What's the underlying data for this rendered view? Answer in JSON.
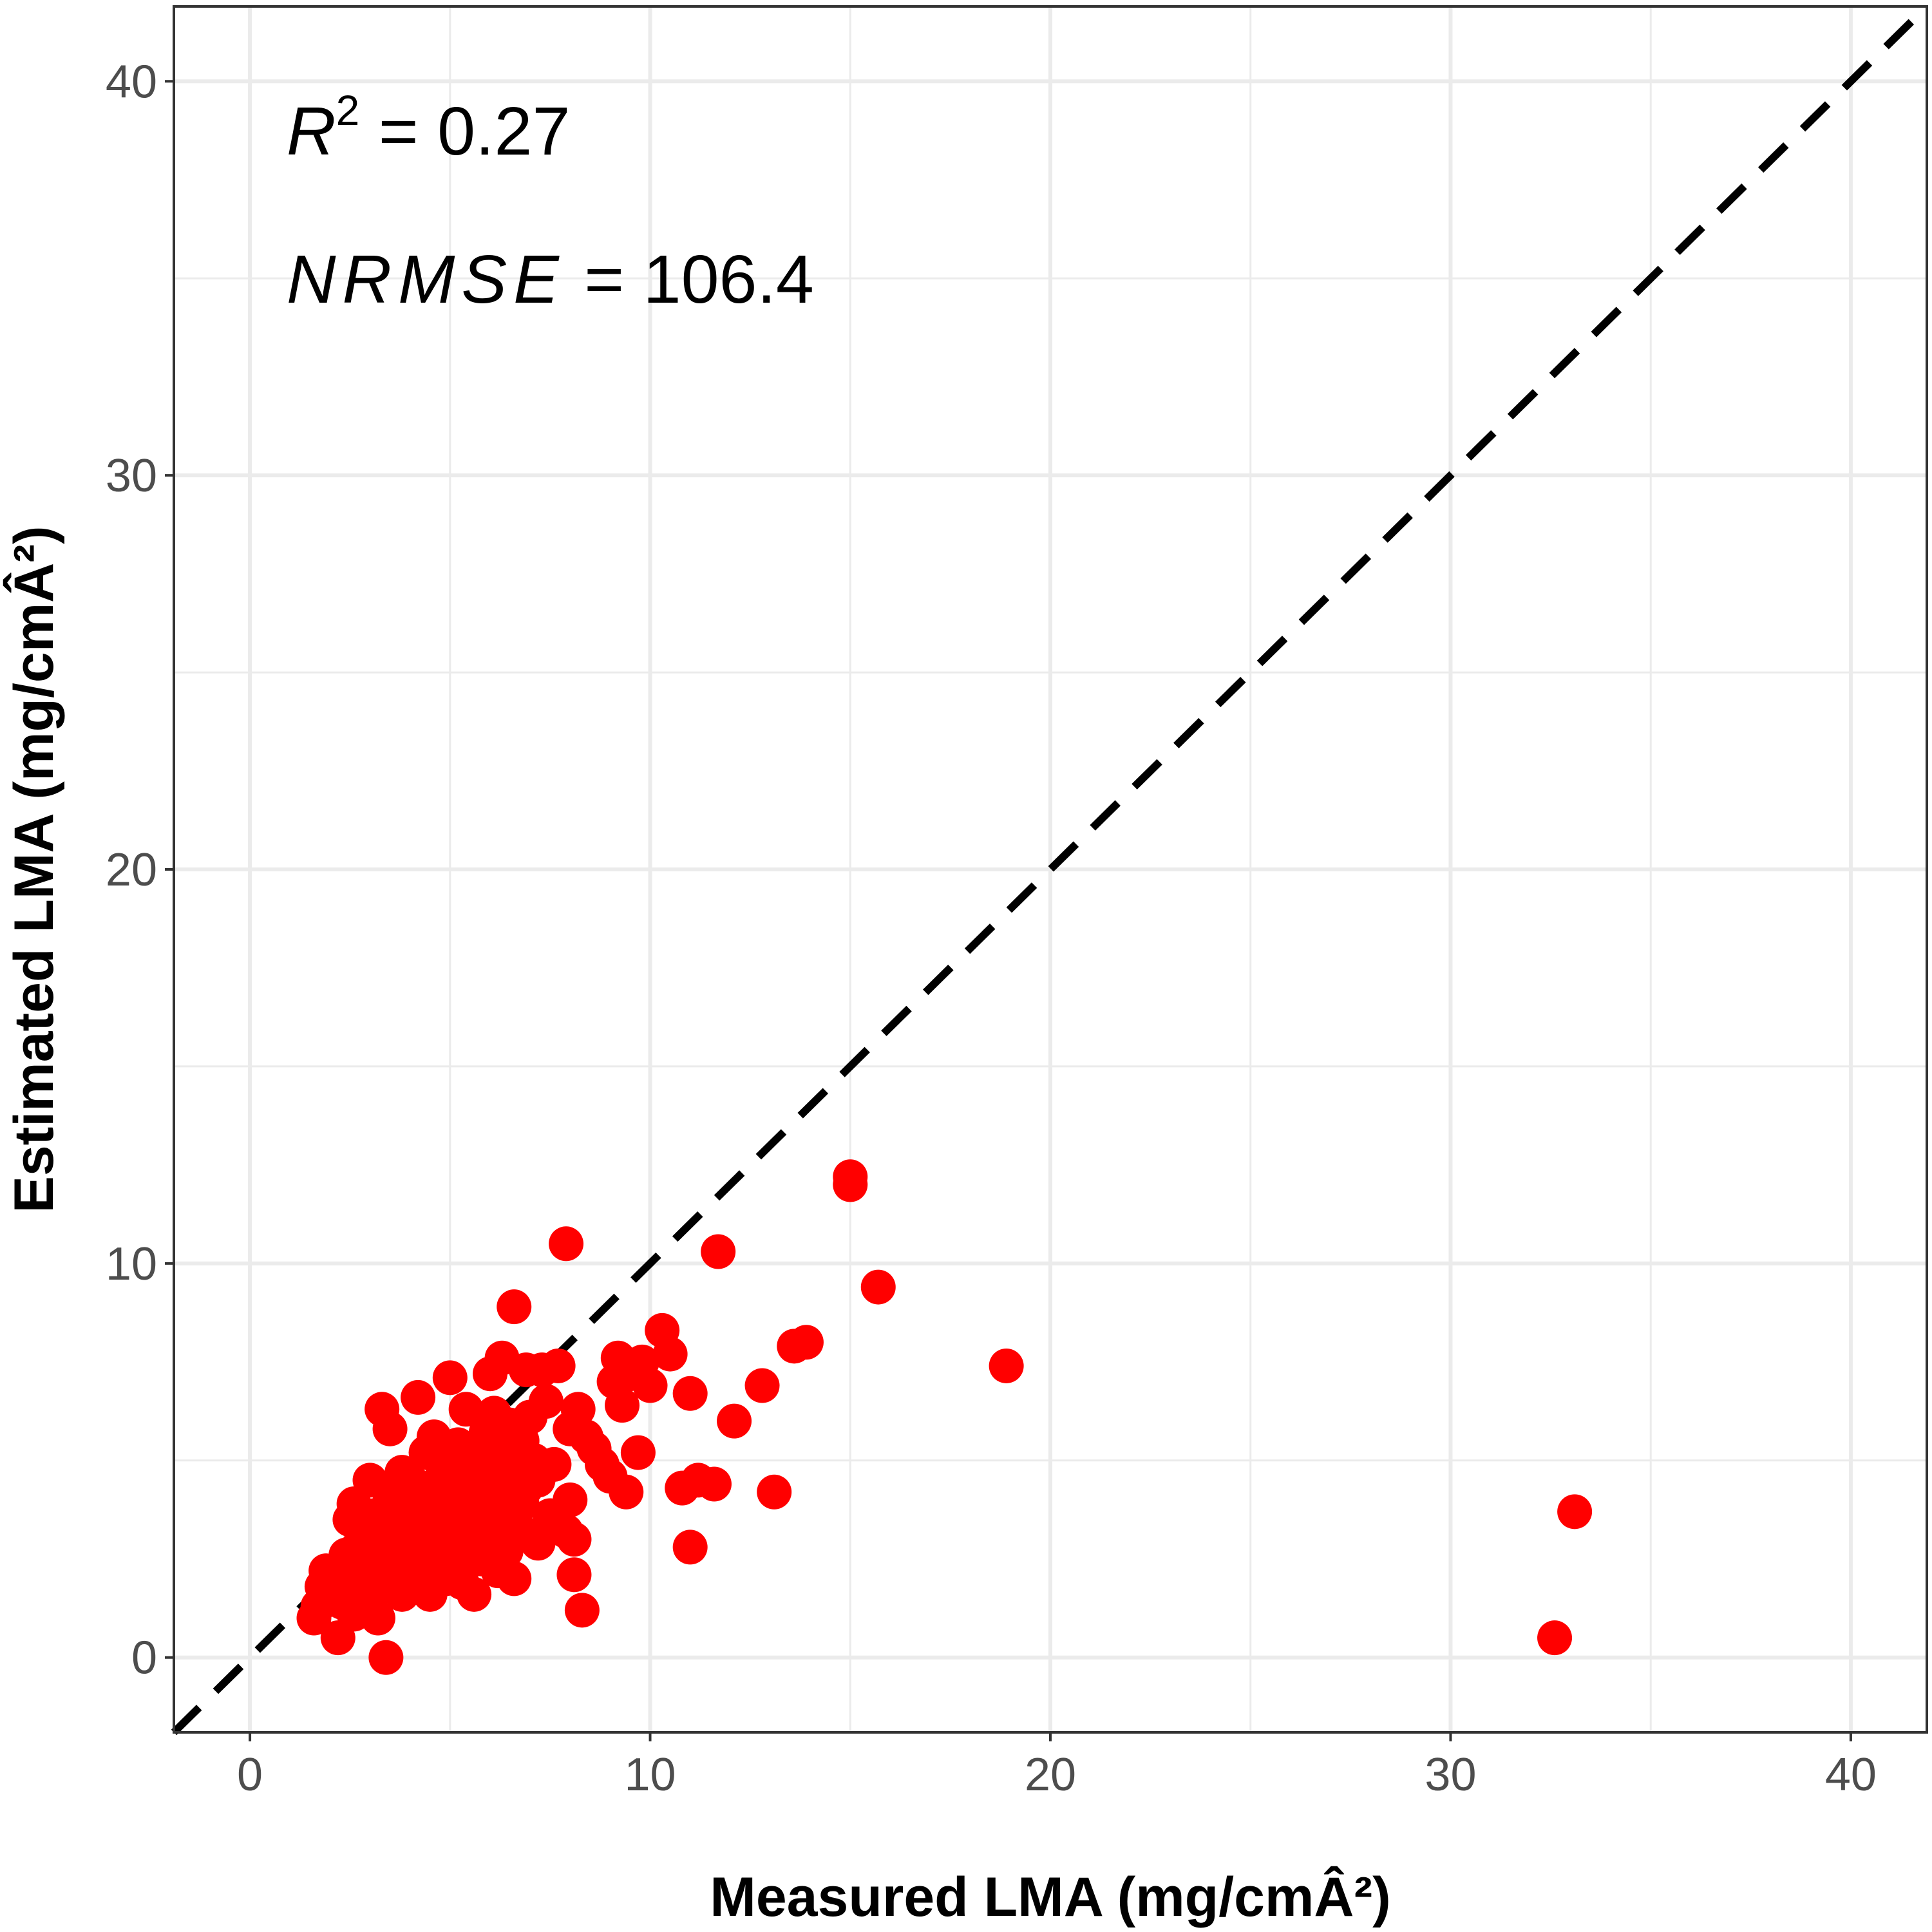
{
  "chart_data": {
    "type": "scatter",
    "xlabel": "Measured LMA (mg/cmÂ²)",
    "ylabel": "Estimated LMA (mg/cmÂ²)",
    "xlim": [
      -1.9,
      41.9
    ],
    "ylim": [
      -1.9,
      41.9
    ],
    "x_ticks": [
      0,
      10,
      20,
      30,
      40
    ],
    "y_ticks": [
      0,
      10,
      20,
      30,
      40
    ],
    "grid": true,
    "reference_line": "1:1 dashed",
    "point_color": "#ff0000",
    "annotations": {
      "r2_symbol": "R",
      "r2_exponent": "2",
      "r2_value": " = 0.27",
      "nrmse_symbol": "NRMSE",
      "nrmse_value": " = 106.4"
    },
    "points": [
      [
        1.6,
        1.0
      ],
      [
        1.7,
        1.3
      ],
      [
        1.8,
        1.8
      ],
      [
        1.9,
        2.2
      ],
      [
        2.0,
        1.6
      ],
      [
        2.1,
        2.0
      ],
      [
        2.2,
        0.5
      ],
      [
        2.3,
        1.4
      ],
      [
        2.4,
        1.9
      ],
      [
        2.4,
        2.6
      ],
      [
        2.5,
        3.5
      ],
      [
        2.5,
        2.2
      ],
      [
        2.6,
        1.1
      ],
      [
        2.6,
        3.9
      ],
      [
        2.7,
        2.8
      ],
      [
        2.8,
        1.7
      ],
      [
        2.8,
        3.2
      ],
      [
        2.9,
        2.3
      ],
      [
        3.0,
        4.5
      ],
      [
        3.0,
        1.4
      ],
      [
        3.1,
        2.9
      ],
      [
        3.1,
        3.6
      ],
      [
        3.2,
        1.0
      ],
      [
        3.2,
        2.1
      ],
      [
        3.3,
        6.3
      ],
      [
        3.3,
        3.0
      ],
      [
        3.4,
        0.0
      ],
      [
        3.4,
        2.5
      ],
      [
        3.5,
        4.1
      ],
      [
        3.5,
        5.8
      ],
      [
        3.6,
        1.9
      ],
      [
        3.6,
        3.3
      ],
      [
        3.7,
        2.7
      ],
      [
        3.8,
        4.7
      ],
      [
        3.8,
        1.6
      ],
      [
        3.9,
        3.8
      ],
      [
        4.0,
        2.3
      ],
      [
        4.0,
        3.1
      ],
      [
        4.1,
        4.4
      ],
      [
        4.1,
        1.9
      ],
      [
        4.2,
        6.6
      ],
      [
        4.2,
        2.9
      ],
      [
        4.3,
        3.5
      ],
      [
        4.4,
        5.2
      ],
      [
        4.4,
        2.1
      ],
      [
        4.5,
        4.0
      ],
      [
        4.5,
        1.6
      ],
      [
        4.6,
        3.2
      ],
      [
        4.6,
        5.6
      ],
      [
        4.7,
        2.6
      ],
      [
        4.8,
        4.6
      ],
      [
        4.8,
        3.7
      ],
      [
        4.9,
        2.0
      ],
      [
        4.9,
        5.0
      ],
      [
        5.0,
        7.1
      ],
      [
        5.0,
        3.0
      ],
      [
        5.1,
        4.2
      ],
      [
        5.1,
        2.4
      ],
      [
        5.2,
        5.4
      ],
      [
        5.3,
        3.6
      ],
      [
        5.3,
        1.9
      ],
      [
        5.4,
        6.3
      ],
      [
        5.4,
        4.8
      ],
      [
        5.5,
        2.8
      ],
      [
        5.5,
        3.9
      ],
      [
        5.6,
        1.6
      ],
      [
        5.6,
        5.1
      ],
      [
        5.7,
        4.4
      ],
      [
        5.8,
        3.3
      ],
      [
        5.8,
        2.5
      ],
      [
        5.9,
        5.7
      ],
      [
        5.9,
        4.0
      ],
      [
        6.0,
        7.2
      ],
      [
        6.0,
        3.0
      ],
      [
        6.1,
        6.2
      ],
      [
        6.1,
        4.7
      ],
      [
        6.2,
        2.2
      ],
      [
        6.2,
        5.3
      ],
      [
        6.3,
        7.6
      ],
      [
        6.3,
        3.8
      ],
      [
        6.4,
        4.4
      ],
      [
        6.4,
        2.7
      ],
      [
        6.5,
        5.9
      ],
      [
        6.5,
        3.4
      ],
      [
        6.6,
        8.9
      ],
      [
        6.6,
        2.0
      ],
      [
        6.7,
        4.8
      ],
      [
        6.8,
        5.5
      ],
      [
        6.8,
        3.9
      ],
      [
        6.9,
        7.3
      ],
      [
        6.9,
        4.3
      ],
      [
        7.0,
        3.1
      ],
      [
        7.0,
        6.1
      ],
      [
        7.1,
        5.0
      ],
      [
        7.2,
        2.9
      ],
      [
        7.2,
        4.5
      ],
      [
        7.3,
        7.3
      ],
      [
        7.4,
        6.5
      ],
      [
        7.5,
        3.6
      ],
      [
        7.6,
        4.9
      ],
      [
        7.7,
        7.4
      ],
      [
        7.9,
        10.5
      ],
      [
        7.9,
        3.2
      ],
      [
        8.0,
        4.0
      ],
      [
        8.0,
        5.8
      ],
      [
        8.1,
        3.0
      ],
      [
        8.1,
        2.1
      ],
      [
        8.2,
        6.3
      ],
      [
        8.3,
        1.2
      ],
      [
        8.4,
        5.6
      ],
      [
        8.6,
        5.3
      ],
      [
        8.8,
        4.9
      ],
      [
        9.0,
        4.6
      ],
      [
        9.1,
        7.0
      ],
      [
        9.2,
        7.6
      ],
      [
        9.3,
        6.4
      ],
      [
        9.4,
        4.2
      ],
      [
        9.5,
        7.2
      ],
      [
        9.7,
        5.2
      ],
      [
        9.8,
        7.5
      ],
      [
        10.0,
        6.9
      ],
      [
        10.3,
        8.3
      ],
      [
        10.5,
        7.7
      ],
      [
        11.0,
        6.7
      ],
      [
        10.8,
        4.3
      ],
      [
        11.0,
        2.8
      ],
      [
        11.2,
        4.5
      ],
      [
        11.6,
        4.4
      ],
      [
        11.7,
        10.3
      ],
      [
        12.1,
        6.0
      ],
      [
        12.8,
        6.9
      ],
      [
        13.1,
        4.2
      ],
      [
        13.6,
        7.9
      ],
      [
        13.9,
        8.0
      ],
      [
        15.0,
        12.2
      ],
      [
        15.0,
        12.0
      ],
      [
        15.7,
        9.4
      ],
      [
        18.9,
        7.4
      ],
      [
        32.6,
        0.5
      ],
      [
        33.1,
        3.7
      ]
    ]
  }
}
